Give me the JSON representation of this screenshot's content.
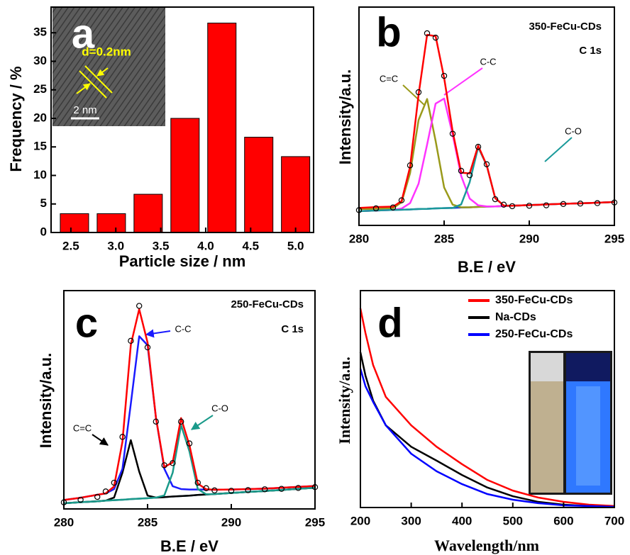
{
  "chart_data": [
    {
      "type": "bar",
      "panel_label": "a",
      "xlabel": "Particle size / nm",
      "ylabel": "Frequency / %",
      "x": [
        2.54,
        2.95,
        3.36,
        3.77,
        4.18,
        4.59,
        5.0
      ],
      "values": [
        3.3,
        3.3,
        6.7,
        20,
        36.7,
        16.7,
        13.3
      ],
      "color": "#ff0000",
      "xlim": [
        2.28,
        5.2
      ],
      "xticks": [
        2.5,
        {
          "value": 3,
          "label": "3.0"
        },
        3.5,
        {
          "value": 4,
          "label": "4.0"
        },
        4.5,
        {
          "value": 5,
          "label": "5.0"
        }
      ],
      "ylim": [
        0,
        39.5
      ],
      "yticks": [
        0,
        5,
        10,
        15,
        20,
        25,
        30,
        35
      ],
      "inset_annotation": "d=0.2nm",
      "inset_scale": "2 nm"
    },
    {
      "type": "line",
      "panel_label": "b",
      "sample": "350-FeCu-CDs",
      "core_level": "C 1s",
      "xlabel": "B.E / eV",
      "ylabel": "Intensity/a.u.",
      "xlim": [
        280,
        295
      ],
      "xticks": [
        280,
        285,
        290,
        295
      ],
      "ylim": [
        0,
        100
      ],
      "x": [
        280,
        281,
        282,
        282.5,
        283,
        283.5,
        284,
        284.5,
        285,
        285.5,
        286,
        286.5,
        287,
        287.5,
        288,
        288.5,
        289,
        290,
        291,
        292,
        293,
        294,
        295
      ],
      "series": [
        {
          "color": "#1f3fd0",
          "values": [
            6.5,
            6.8,
            7.1,
            7.2,
            7.3,
            7.5,
            7.6,
            7.8,
            7.9,
            8.0,
            8.2,
            8.3,
            8.5,
            8.6,
            8.7,
            8.9,
            9.0,
            9.3,
            9.6,
            9.9,
            10.1,
            10.4,
            10.7
          ]
        },
        {
          "name": "C=C",
          "color": "#9a9a1a",
          "values": [
            7.5,
            7.6,
            7.9,
            10.6,
            23.9,
            48.3,
            57.9,
            38.7,
            17.4,
            9.5,
            8.3,
            8.3,
            8.5,
            8.6,
            8.7,
            8.9,
            9.0,
            9.3,
            9.6,
            9.9,
            10.1,
            10.4,
            10.7
          ]
        },
        {
          "name": "C-C",
          "color": "#ff33ff",
          "values": [
            6.5,
            6.8,
            7.1,
            7.7,
            10.2,
            19.1,
            37.0,
            55.8,
            58.1,
            41.6,
            22.7,
            12.3,
            9.2,
            8.7,
            8.7,
            8.9,
            9.0,
            9.3,
            9.6,
            9.9,
            10.1,
            10.4,
            10.7
          ]
        },
        {
          "name": "C-O",
          "color": "#1a9a9a",
          "values": [
            6.5,
            6.8,
            7.1,
            7.2,
            7.3,
            7.5,
            7.6,
            7.8,
            7.9,
            8.0,
            9.6,
            19.8,
            35.8,
            27.5,
            12.5,
            9.1,
            9.0,
            9.3,
            9.6,
            9.9,
            10.1,
            10.4,
            10.7
          ]
        },
        {
          "color": "#ff0000",
          "values": [
            8.0,
            8.4,
            8.6,
            11.1,
            26.8,
            59.9,
            87.3,
            86.7,
            67.6,
            43.1,
            24.2,
            23.8,
            36.5,
            27.6,
            12.5,
            9.1,
            9.0,
            9.3,
            9.6,
            9.9,
            10.1,
            10.4,
            10.7
          ]
        },
        {
          "color": "#000000",
          "style": "markers",
          "values": [
            7.0,
            7.8,
            8.2,
            11.5,
            27.5,
            61,
            88,
            86,
            68.5,
            42,
            25,
            23,
            36,
            28,
            12,
            9.5,
            8.8,
            9.0,
            9.2,
            9.8,
            10.0,
            10.2,
            10.5
          ]
        }
      ]
    },
    {
      "type": "line",
      "panel_label": "c",
      "sample": "250-FeCu-CDs",
      "core_level": "C 1s",
      "xlabel": "B.E / eV",
      "ylabel": "Intensity/a.u.",
      "xlim": [
        280,
        295
      ],
      "xticks": [
        280,
        285,
        290,
        295
      ],
      "ylim": [
        0,
        100
      ],
      "x": [
        280,
        281,
        282,
        282.5,
        283,
        283.5,
        284,
        284.5,
        285,
        285.5,
        286,
        286.5,
        287,
        287.5,
        288,
        288.5,
        289,
        290,
        291,
        292,
        293,
        294,
        295
      ],
      "series": [
        {
          "color": "#1a6a9a",
          "values": [
            2.6,
            3.1,
            3.5,
            3.8,
            4.0,
            4.2,
            4.5,
            4.7,
            4.9,
            5.2,
            5.4,
            5.7,
            5.9,
            6.1,
            6.4,
            6.6,
            6.8,
            7.3,
            7.8,
            8.2,
            8.7,
            9.2,
            9.7
          ]
        },
        {
          "name": "C=C",
          "color": "#000000",
          "values": [
            2.6,
            3.1,
            3.5,
            3.8,
            5.2,
            16.6,
            31.5,
            17.1,
            6.1,
            5.2,
            5.4,
            5.7,
            5.9,
            6.1,
            6.4,
            6.6,
            6.8,
            7.3,
            7.8,
            8.2,
            8.7,
            9.2,
            9.7
          ]
        },
        {
          "name": "C-C",
          "color": "#1a1aff",
          "values": [
            4.1,
            5.1,
            6.5,
            7.1,
            9.1,
            18.4,
            48.2,
            79.1,
            75.0,
            41.8,
            18.4,
            10.4,
            9.1,
            8.9,
            8.9,
            8.9,
            8.8,
            8.9,
            9.1,
            9.3,
            9.7,
            10.1,
            10.5
          ]
        },
        {
          "name": "C-O",
          "color": "#1a9a8a",
          "values": [
            2.6,
            3.1,
            3.5,
            3.8,
            4.0,
            4.2,
            4.5,
            4.7,
            4.9,
            5.2,
            6.2,
            16.6,
            38.4,
            26.4,
            9.1,
            6.7,
            6.8,
            7.3,
            7.8,
            8.2,
            8.7,
            9.2,
            9.7
          ]
        },
        {
          "color": "#ff0000",
          "values": [
            4.1,
            5.1,
            6.5,
            7.1,
            10.3,
            30.8,
            75.2,
            91.5,
            76.2,
            41.8,
            19.2,
            21.3,
            41.6,
            29.2,
            11.6,
            9.0,
            8.8,
            8.9,
            9.1,
            9.3,
            9.7,
            10.1,
            10.5
          ]
        },
        {
          "color": "#000000",
          "style": "markers",
          "values": [
            3.0,
            4.2,
            5.5,
            8.0,
            12.0,
            33,
            77,
            93,
            74,
            40,
            20,
            21,
            40,
            30,
            12,
            9.5,
            8.5,
            8.3,
            8.6,
            9.0,
            9.2,
            9.6,
            10.0
          ]
        }
      ]
    },
    {
      "type": "line",
      "panel_label": "d",
      "xlabel": "Wavelength/nm",
      "ylabel": "Intensity/a.u.",
      "xlim": [
        200,
        700
      ],
      "xticks": [
        200,
        300,
        400,
        500,
        600,
        700
      ],
      "ylim": [
        0,
        100
      ],
      "legend": "upper right",
      "x": [
        200,
        210,
        225,
        250,
        300,
        350,
        400,
        450,
        500,
        550,
        600,
        650,
        700
      ],
      "series": [
        {
          "name": "350-FeCu-CDs",
          "color": "#ff0000",
          "values": [
            91.8,
            80.4,
            65.7,
            51,
            37.9,
            28,
            20,
            12.7,
            7.8,
            4.6,
            2.6,
            1.3,
            0.7
          ]
        },
        {
          "name": "Na-CDs",
          "color": "#000000",
          "values": [
            71.6,
            60.8,
            49.3,
            37.9,
            28,
            21.6,
            15,
            9.2,
            5.2,
            2.6,
            1.3,
            0.7,
            0.3
          ]
        },
        {
          "name": "250-FeCu-CDs",
          "color": "#0000ff",
          "values": [
            64,
            55.9,
            48.7,
            37.9,
            24.8,
            16.7,
            10.8,
            6.2,
            3.6,
            2,
            1,
            0.7,
            0.3
          ]
        }
      ]
    }
  ]
}
